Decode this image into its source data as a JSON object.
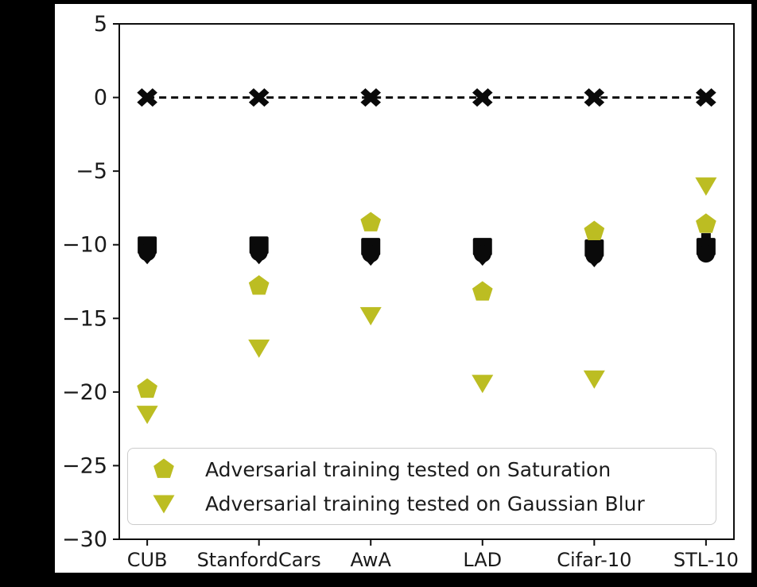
{
  "figure": {
    "outer_background": "#000000",
    "panel_background": "#ffffff",
    "accent_color": "#bcbd22",
    "marker_black": "#0a0a0a"
  },
  "chart_data": {
    "type": "scatter",
    "categories": [
      "CUB",
      "StanfordCars",
      "AwA",
      "LAD",
      "Cifar-10",
      "STL-10"
    ],
    "ylim": [
      -30,
      5
    ],
    "yticks": [
      5,
      0,
      -5,
      -10,
      -15,
      -20,
      -25,
      -30
    ],
    "ytick_labels": [
      "5",
      "0",
      "−5",
      "−10",
      "−15",
      "−20",
      "−25",
      "−30"
    ],
    "grid": false,
    "title": "",
    "xlabel": "",
    "ylabel": "",
    "baseline": {
      "name": "zero baseline",
      "marker": "X",
      "linestyle": "dashed",
      "color": "#0a0a0a",
      "values": [
        0,
        0,
        0,
        0,
        0,
        0
      ]
    },
    "series": [
      {
        "name": "overlapping black markers (untested baseline drop)",
        "marker": "black-cluster",
        "color": "#0a0a0a",
        "in_legend": false,
        "values": [
          -10.3,
          -10.3,
          -10.4,
          -10.4,
          -10.5,
          -10.4
        ]
      },
      {
        "name": "Adversarial training tested on Saturation",
        "marker": "pentagon",
        "color": "#bcbd22",
        "in_legend": true,
        "values": [
          -19.8,
          -12.8,
          -8.5,
          -13.2,
          -9.1,
          -8.6
        ]
      },
      {
        "name": "Adversarial training tested on Gaussian Blur",
        "marker": "triangle-down",
        "color": "#bcbd22",
        "in_legend": true,
        "values": [
          -21.5,
          -17.0,
          -14.8,
          -19.4,
          -19.1,
          -6.0
        ]
      }
    ],
    "legend": [
      {
        "marker": "pentagon",
        "color": "#bcbd22",
        "label": "Adversarial training tested on Saturation"
      },
      {
        "marker": "triangle-down",
        "color": "#bcbd22",
        "label": "Adversarial training tested on Gaussian Blur"
      }
    ],
    "legend_position": "lower center"
  }
}
